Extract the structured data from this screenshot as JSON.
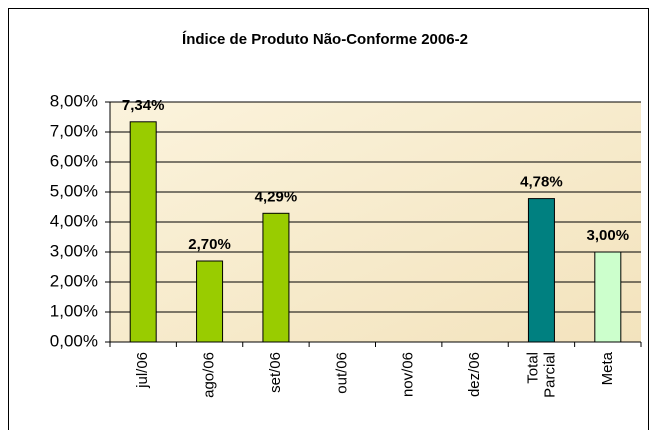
{
  "chart_data": {
    "type": "bar",
    "title": "Índice de Produto Não-Conforme 2006-2",
    "categories": [
      "jul/06",
      "ago/06",
      "set/06",
      "out/06",
      "nov/06",
      "dez/06",
      "Total Parcial",
      "Meta"
    ],
    "values": [
      7.34,
      2.7,
      4.29,
      null,
      null,
      null,
      4.78,
      3.0
    ],
    "value_labels": [
      "7,34%",
      "2,70%",
      "4,29%",
      null,
      null,
      null,
      "4,78%",
      "3,00%"
    ],
    "colors": [
      "#99cc00",
      "#99cc00",
      "#99cc00",
      "#99cc00",
      "#99cc00",
      "#99cc00",
      "#008080",
      "#ccffcc"
    ],
    "ylim": [
      0,
      8
    ],
    "yticks": [
      {
        "value": 0,
        "label": "0,00%"
      },
      {
        "value": 1,
        "label": "1,00%"
      },
      {
        "value": 2,
        "label": "2,00%"
      },
      {
        "value": 3,
        "label": "3,00%"
      },
      {
        "value": 4,
        "label": "4,00%"
      },
      {
        "value": 5,
        "label": "5,00%"
      },
      {
        "value": 6,
        "label": "6,00%"
      },
      {
        "value": 7,
        "label": "7,00%"
      },
      {
        "value": 8,
        "label": "8,00%"
      }
    ],
    "grid": true
  }
}
